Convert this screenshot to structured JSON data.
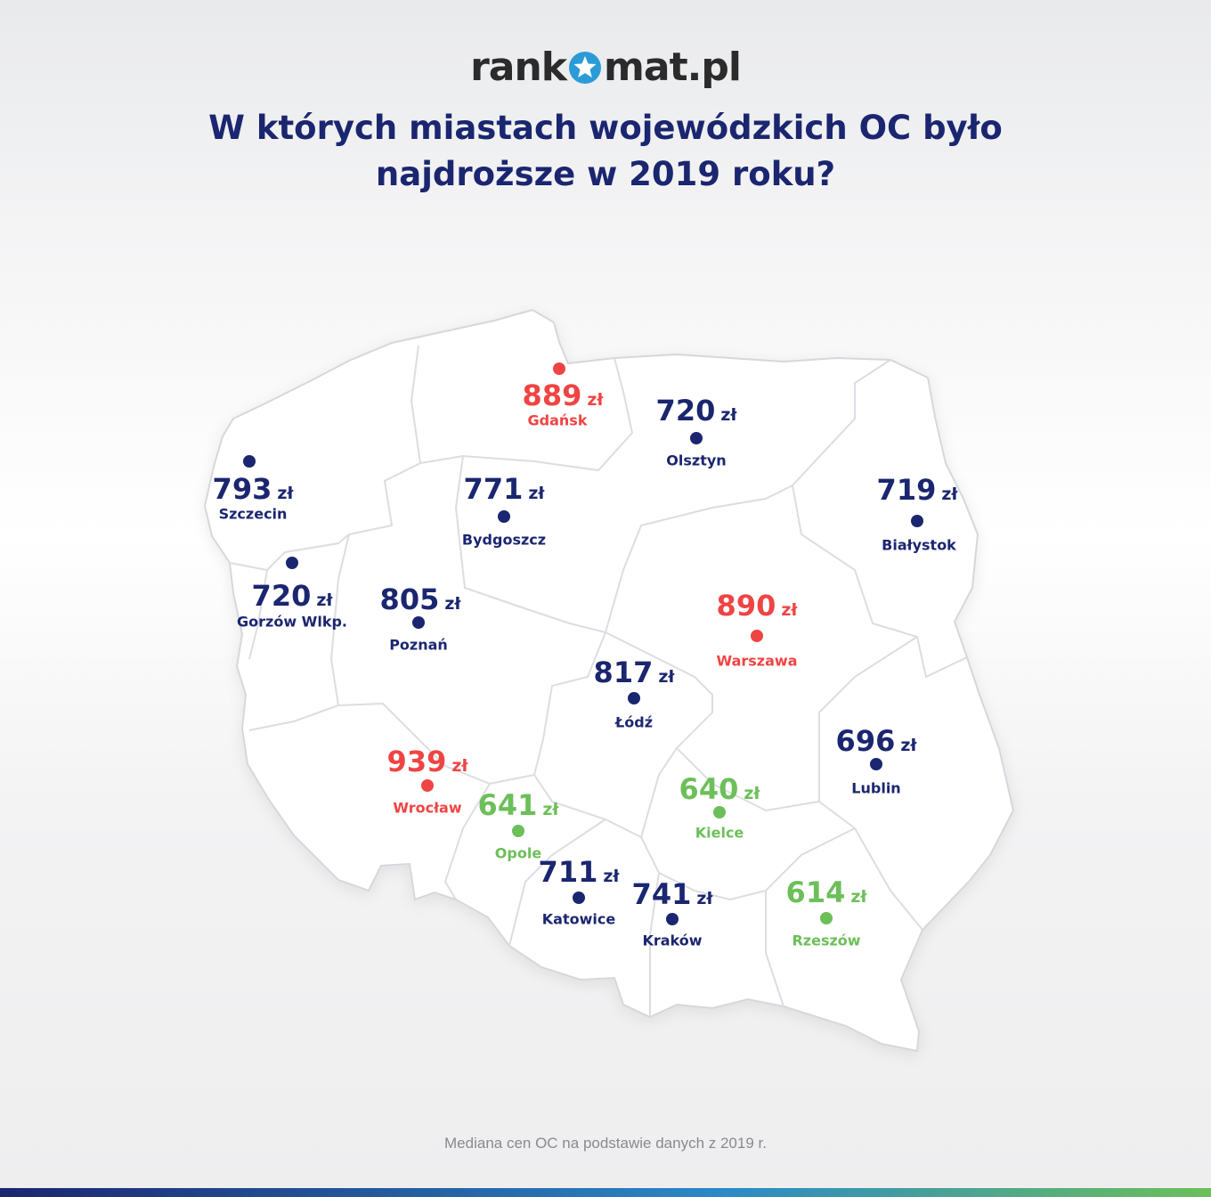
{
  "logo": {
    "text_left": "rank",
    "text_right": "mat.pl"
  },
  "title": "W których miastach wojewódzkich OC było najdroższe w 2019 roku?",
  "footnote": "Mediana cen OC na podstawie danych z 2019 r.",
  "colors": {
    "navy": "#1b2670",
    "red": "#f04444",
    "green": "#6cbf59",
    "map_fill": "#ffffff",
    "map_border": "#d6d7db"
  },
  "icons": {
    "logo_star": "star-icon"
  },
  "cities": [
    {
      "name": "Gdańsk",
      "price": "889",
      "unit": "zł",
      "tier": "high"
    },
    {
      "name": "Olsztyn",
      "price": "720",
      "unit": "zł",
      "tier": "mid"
    },
    {
      "name": "Szczecin",
      "price": "793",
      "unit": "zł",
      "tier": "mid"
    },
    {
      "name": "Bydgoszcz",
      "price": "771",
      "unit": "zł",
      "tier": "mid"
    },
    {
      "name": "Białystok",
      "price": "719",
      "unit": "zł",
      "tier": "mid"
    },
    {
      "name": "Gorzów Wlkp.",
      "price": "720",
      "unit": "zł",
      "tier": "mid"
    },
    {
      "name": "Poznań",
      "price": "805",
      "unit": "zł",
      "tier": "mid"
    },
    {
      "name": "Warszawa",
      "price": "890",
      "unit": "zł",
      "tier": "high"
    },
    {
      "name": "Łódź",
      "price": "817",
      "unit": "zł",
      "tier": "mid"
    },
    {
      "name": "Lublin",
      "price": "696",
      "unit": "zł",
      "tier": "mid"
    },
    {
      "name": "Wrocław",
      "price": "939",
      "unit": "zł",
      "tier": "high"
    },
    {
      "name": "Opole",
      "price": "641",
      "unit": "zł",
      "tier": "low"
    },
    {
      "name": "Kielce",
      "price": "640",
      "unit": "zł",
      "tier": "low"
    },
    {
      "name": "Katowice",
      "price": "711",
      "unit": "zł",
      "tier": "mid"
    },
    {
      "name": "Kraków",
      "price": "741",
      "unit": "zł",
      "tier": "mid"
    },
    {
      "name": "Rzeszów",
      "price": "614",
      "unit": "zł",
      "tier": "low"
    }
  ]
}
